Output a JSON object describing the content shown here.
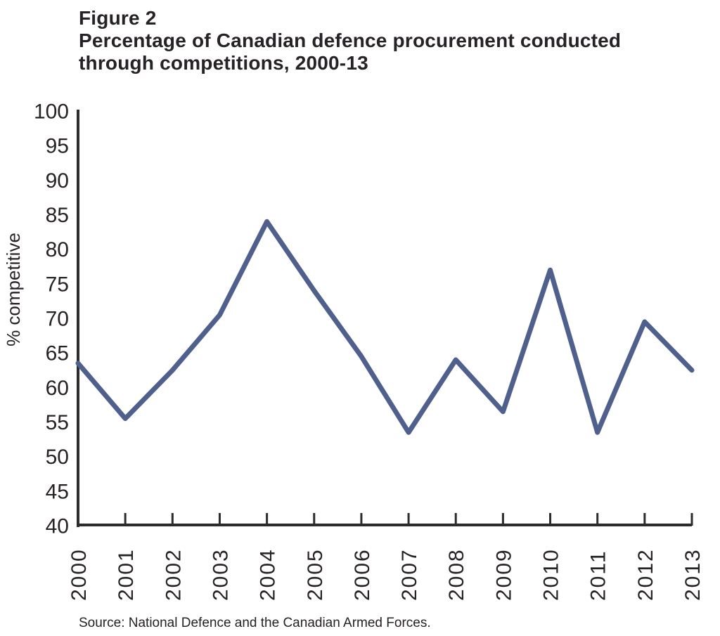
{
  "figure": {
    "label": "Figure 2",
    "title_line1": "Percentage of Canadian defence procurement conducted",
    "title_line2": "through competitions, 2000-13",
    "source": "Source: National Defence and the Canadian Armed Forces."
  },
  "chart_data": {
    "type": "line",
    "title": "Percentage of Canadian defence procurement conducted through competitions, 2000-13",
    "categories": [
      "2000",
      "2001",
      "2002",
      "2003",
      "2004",
      "2005",
      "2006",
      "2007",
      "2008",
      "2009",
      "2010",
      "2011",
      "2012",
      "2013"
    ],
    "values": [
      63.5,
      55.5,
      62.5,
      70.5,
      84,
      74,
      64.5,
      53.5,
      64,
      56.5,
      77,
      53.5,
      69.5,
      62.5
    ],
    "xlabel": "",
    "ylabel": "% competitive",
    "ylim": [
      40,
      100
    ],
    "yticks": [
      100,
      95,
      90,
      85,
      80,
      75,
      70,
      65,
      60,
      55,
      50,
      45,
      40
    ],
    "grid": false,
    "legend": false,
    "line_color": "#4F608D",
    "axis_color": "#2E2B2C",
    "text_color": "#262226"
  }
}
